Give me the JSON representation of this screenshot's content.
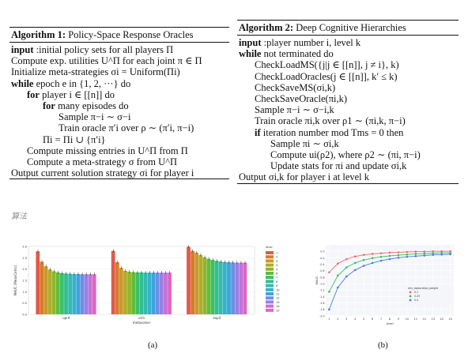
{
  "algorithm1": {
    "title_bold": "Algorithm 1:",
    "title_rest": " Policy-Space Response Oracles",
    "lines": [
      {
        "indent": 0,
        "kw": "input",
        "text": " :initial policy sets for all players Π"
      },
      {
        "indent": 0,
        "kw": "",
        "text": "Compute exp. utilities U^Π for each joint π ∈ Π"
      },
      {
        "indent": 0,
        "kw": "",
        "text": "Initialize meta-strategies σi = Uniform(Πi)"
      },
      {
        "indent": 0,
        "kw": "while",
        "text": " epoch e in {1, 2, ···} do"
      },
      {
        "indent": 1,
        "kw": "for",
        "text": " player i ∈ [[n]] do"
      },
      {
        "indent": 2,
        "kw": "for",
        "text": " many episodes do"
      },
      {
        "indent": 3,
        "kw": "",
        "text": "Sample π−i ∼ σ−i"
      },
      {
        "indent": 3,
        "kw": "",
        "text": "Train oracle π′i over ρ ∼ (π′i, π−i)"
      },
      {
        "indent": 2,
        "kw": "",
        "text": "Πi = Πi ∪ {π′i}"
      },
      {
        "indent": 1,
        "kw": "",
        "text": "Compute missing entries in U^Π from Π"
      },
      {
        "indent": 1,
        "kw": "",
        "text": "Compute a meta-strategy σ from U^Π"
      },
      {
        "indent": 0,
        "kw": "",
        "text": "Output current solution strategy σi for player i"
      }
    ]
  },
  "algorithm2": {
    "title_bold": "Algorithm 2:",
    "title_rest": " Deep Cognitive Hierarchies",
    "lines": [
      {
        "indent": 0,
        "kw": "input",
        "text": " :player number i, level k"
      },
      {
        "indent": 0,
        "kw": "while",
        "text": " not terminated do"
      },
      {
        "indent": 1,
        "kw": "",
        "text": "CheckLoadMS({j|j ∈ [[n]], j ≠ i}, k)"
      },
      {
        "indent": 1,
        "kw": "",
        "text": "CheckLoadOracles(j ∈ [[n]], k′ ≤ k)"
      },
      {
        "indent": 1,
        "kw": "",
        "text": "CheckSaveMS(σi,k)"
      },
      {
        "indent": 1,
        "kw": "",
        "text": "CheckSaveOracle(πi,k)"
      },
      {
        "indent": 1,
        "kw": "",
        "text": "Sample π−i ∼ σ−i,k"
      },
      {
        "indent": 1,
        "kw": "",
        "text": "Train oracle πi,k over ρ1 ∼ (πi,k, π−i)"
      },
      {
        "indent": 1,
        "kw": "if",
        "text": " iteration number mod Tms = 0 then"
      },
      {
        "indent": 2,
        "kw": "",
        "text": "Sample πi ∼ σi,k"
      },
      {
        "indent": 2,
        "kw": "",
        "text": "Compute ui(ρ2), where ρ2 ∼ (πi, π−i)"
      },
      {
        "indent": 2,
        "kw": "",
        "text": "Update stats for πi and update σi,k"
      },
      {
        "indent": 0,
        "kw": "",
        "text": "Output σi,k for player i at level k"
      }
    ]
  },
  "caption_zh": "算法",
  "figure_labels": {
    "a": "(a)",
    "b": "(b)"
  },
  "chart_data": [
    {
      "type": "bar",
      "ylabel": "MAUC (MeanCelric)",
      "xlabel": "metasolver",
      "categories": [
        "uprd",
        "urm",
        "exp3"
      ],
      "ylim": [
        0,
        3.0
      ],
      "yticks": [
        "0.0",
        "0.5",
        "1.0",
        "1.5",
        "2.0",
        "2.5",
        "3.0"
      ],
      "legend_title": "level",
      "legend_placement": "right",
      "series": [
        {
          "name": "1",
          "color": "#e05a47",
          "values": [
            2.78,
            2.8,
            2.98
          ]
        },
        {
          "name": "2",
          "color": "#d77b2b",
          "values": [
            2.32,
            2.3,
            2.8
          ]
        },
        {
          "name": "3",
          "color": "#c99a2a",
          "values": [
            2.12,
            2.05,
            2.72
          ]
        },
        {
          "name": "4",
          "color": "#b0ad2a",
          "values": [
            1.98,
            1.92,
            2.62
          ]
        },
        {
          "name": "5",
          "color": "#8fb62d",
          "values": [
            1.9,
            1.88,
            2.52
          ]
        },
        {
          "name": "6",
          "color": "#5fbd3c",
          "values": [
            1.85,
            1.86,
            2.45
          ]
        },
        {
          "name": "7",
          "color": "#3cbf6a",
          "values": [
            1.82,
            1.85,
            2.4
          ]
        },
        {
          "name": "8",
          "color": "#32be93",
          "values": [
            1.8,
            1.85,
            2.36
          ]
        },
        {
          "name": "9",
          "color": "#33bbb2",
          "values": [
            1.79,
            1.84,
            2.33
          ]
        },
        {
          "name": "10",
          "color": "#36b2cc",
          "values": [
            1.78,
            1.84,
            2.31
          ]
        },
        {
          "name": "11",
          "color": "#3fa3dd",
          "values": [
            1.78,
            1.84,
            2.3
          ]
        },
        {
          "name": "12",
          "color": "#6c8fe6",
          "values": [
            1.77,
            1.84,
            2.29
          ]
        },
        {
          "name": "13",
          "color": "#9a7fe4",
          "values": [
            1.77,
            1.84,
            2.28
          ]
        },
        {
          "name": "14",
          "color": "#c471d9",
          "values": [
            1.77,
            1.84,
            2.28
          ]
        },
        {
          "name": "15",
          "color": "#e066bd",
          "values": [
            1.77,
            1.84,
            2.28
          ]
        }
      ]
    },
    {
      "type": "line",
      "xlabel": "level",
      "ylabel": "MAUC",
      "x": [
        1,
        2,
        3,
        4,
        5,
        6,
        7,
        8,
        9,
        10,
        11,
        12,
        13,
        14,
        15
      ],
      "xticks": [
        "1",
        "2",
        "3",
        "4",
        "5",
        "6",
        "7",
        "8",
        "9",
        "10",
        "11",
        "12",
        "13",
        "14",
        "15"
      ],
      "ylim": [
        -2.0,
        0.2
      ],
      "yticks": [
        "0.0",
        "-0.2",
        "-0.4",
        "-0.6",
        "-0.8",
        "-1.0",
        "-1.2",
        "-1.4",
        "-1.6",
        "-1.8",
        "-2.0"
      ],
      "legend_title": "min_exploration_weight",
      "legend_placement": "center-right",
      "series": [
        {
          "name": "0.1",
          "color": "#ef6b6b",
          "values": [
            -0.65,
            -0.38,
            -0.24,
            -0.16,
            -0.11,
            -0.08,
            -0.06,
            -0.04,
            -0.03,
            -0.02,
            -0.01,
            -0.01,
            0.0,
            0.0,
            0.0
          ]
        },
        {
          "name": "0.25",
          "color": "#3dbf5a",
          "values": [
            -1.25,
            -0.75,
            -0.5,
            -0.36,
            -0.27,
            -0.21,
            -0.17,
            -0.14,
            -0.12,
            -0.1,
            -0.08,
            -0.07,
            -0.06,
            -0.05,
            -0.05
          ]
        },
        {
          "name": "0.4",
          "color": "#4a80d8",
          "values": [
            -1.8,
            -1.12,
            -0.78,
            -0.58,
            -0.45,
            -0.36,
            -0.29,
            -0.24,
            -0.2,
            -0.17,
            -0.15,
            -0.13,
            -0.11,
            -0.1,
            -0.09
          ]
        }
      ]
    }
  ]
}
